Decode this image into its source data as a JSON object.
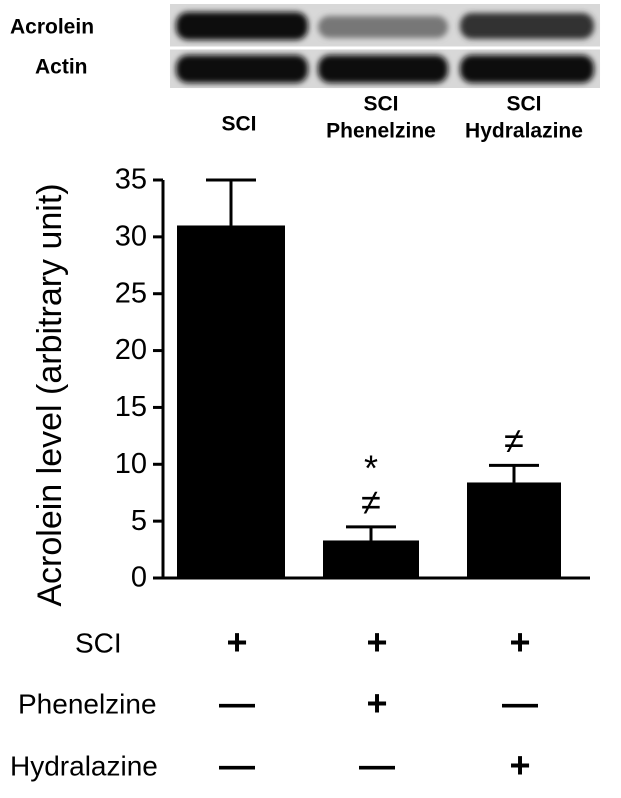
{
  "blot_labels": [
    "Acrolein",
    "Actin"
  ],
  "chart_data": {
    "type": "bar",
    "categories": [
      [
        "SCI"
      ],
      [
        "SCI",
        "Phenelzine"
      ],
      [
        "SCI",
        "Hydralazine"
      ]
    ],
    "values": [
      31,
      3.3,
      8.4
    ],
    "errors": [
      4,
      1.2,
      1.5
    ],
    "color": "#000000",
    "y_label": "Acrolein level (arbitrary unit)",
    "ylim": [
      0,
      35
    ],
    "yticks": [
      0,
      5,
      10,
      15,
      20,
      25,
      30,
      35
    ],
    "annotations": [
      null,
      [
        "*",
        "≠"
      ],
      [
        "≠"
      ]
    ]
  },
  "treatment_table": {
    "rows": [
      {
        "label": "SCI",
        "signs": [
          "+",
          "+",
          "+"
        ]
      },
      {
        "label": "Phenelzine",
        "signs": [
          "—",
          "+",
          "—"
        ]
      },
      {
        "label": "Hydralazine",
        "signs": [
          "—",
          "—",
          "+"
        ]
      }
    ]
  }
}
